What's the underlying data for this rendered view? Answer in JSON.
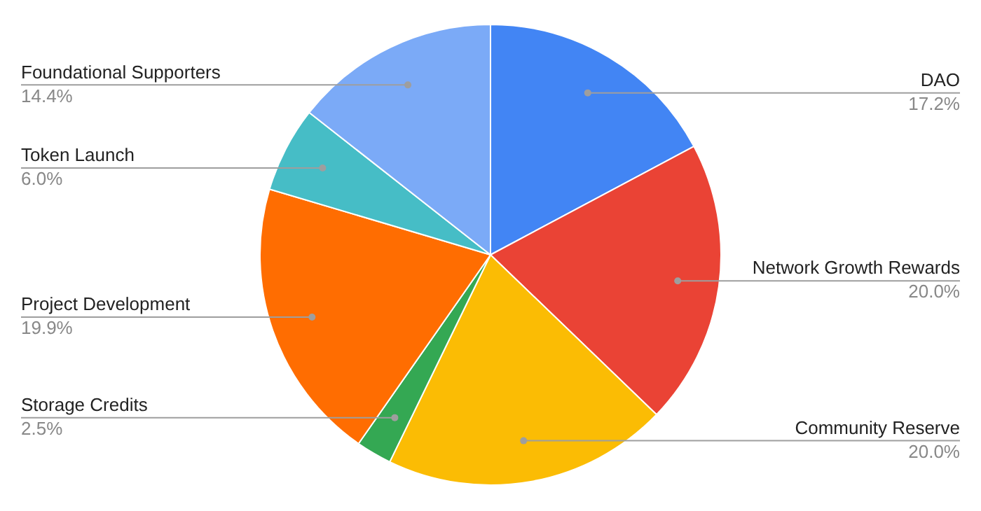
{
  "chart_data": {
    "type": "pie",
    "categories": [
      "DAO",
      "Network Growth Rewards",
      "Community Reserve",
      "Storage Credits",
      "Project Development",
      "Token Launch",
      "Foundational Supporters"
    ],
    "values": [
      17.2,
      20.0,
      20.0,
      2.5,
      19.9,
      6.0,
      14.4
    ],
    "value_labels": [
      "17.2%",
      "20.0%",
      "20.0%",
      "2.5%",
      "19.9%",
      "6.0%",
      "14.4%"
    ],
    "colors": [
      "#4285f4",
      "#ea4335",
      "#fbbc04",
      "#34a853",
      "#ff6d01",
      "#46bdc6",
      "#7baaf7"
    ],
    "legend": false
  }
}
